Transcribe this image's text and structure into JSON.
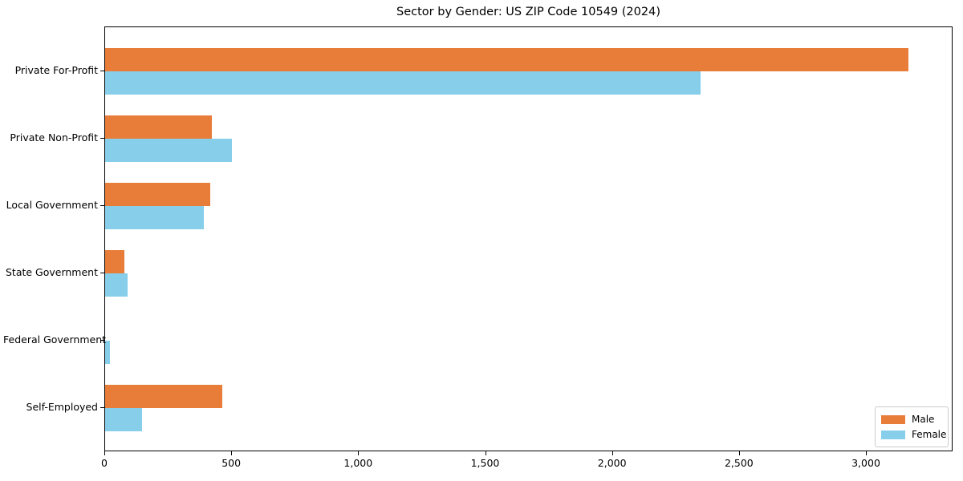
{
  "chart_data": {
    "type": "bar",
    "orientation": "horizontal",
    "title": "Sector by Gender: US ZIP Code 10549 (2024)",
    "categories": [
      "Private For-Profit",
      "Private Non-Profit",
      "Local Government",
      "State Government",
      "Federal Government",
      "Self-Employed"
    ],
    "series": [
      {
        "name": "Male",
        "color": "#e87d3a",
        "values": [
          3165,
          420,
          415,
          75,
          0,
          460
        ]
      },
      {
        "name": "Female",
        "color": "#87ceeb",
        "values": [
          2345,
          500,
          390,
          90,
          20,
          145
        ]
      }
    ],
    "xlabel": "",
    "ylabel": "",
    "xlim": [
      0,
      3335
    ],
    "x_ticks": [
      0,
      500,
      1000,
      1500,
      2000,
      2500,
      3000
    ],
    "x_tick_labels": [
      "0",
      "500",
      "1,000",
      "1,500",
      "2,000",
      "2,500",
      "3,000"
    ],
    "grid": false,
    "legend": {
      "position": "lower right",
      "entries": [
        "Male",
        "Female"
      ]
    }
  }
}
